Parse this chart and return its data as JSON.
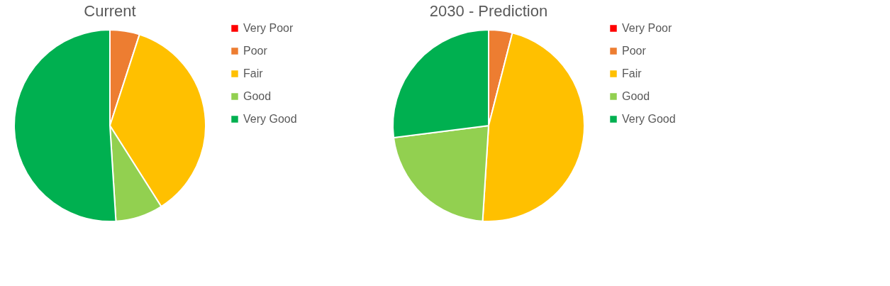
{
  "chart_data": [
    {
      "type": "pie",
      "title": "Current",
      "categories": [
        "Very Poor",
        "Poor",
        "Fair",
        "Good",
        "Very Good"
      ],
      "values": [
        0,
        5,
        36,
        8,
        51
      ],
      "colors": [
        "#ff0000",
        "#ed7d31",
        "#ffc000",
        "#92d050",
        "#00b050"
      ],
      "legend": "right"
    },
    {
      "type": "pie",
      "title": "2030 - Prediction",
      "categories": [
        "Very Poor",
        "Poor",
        "Fair",
        "Good",
        "Very Good"
      ],
      "values": [
        0,
        4,
        47,
        22,
        27
      ],
      "colors": [
        "#ff0000",
        "#ed7d31",
        "#ffc000",
        "#92d050",
        "#00b050"
      ],
      "legend": "right"
    }
  ]
}
